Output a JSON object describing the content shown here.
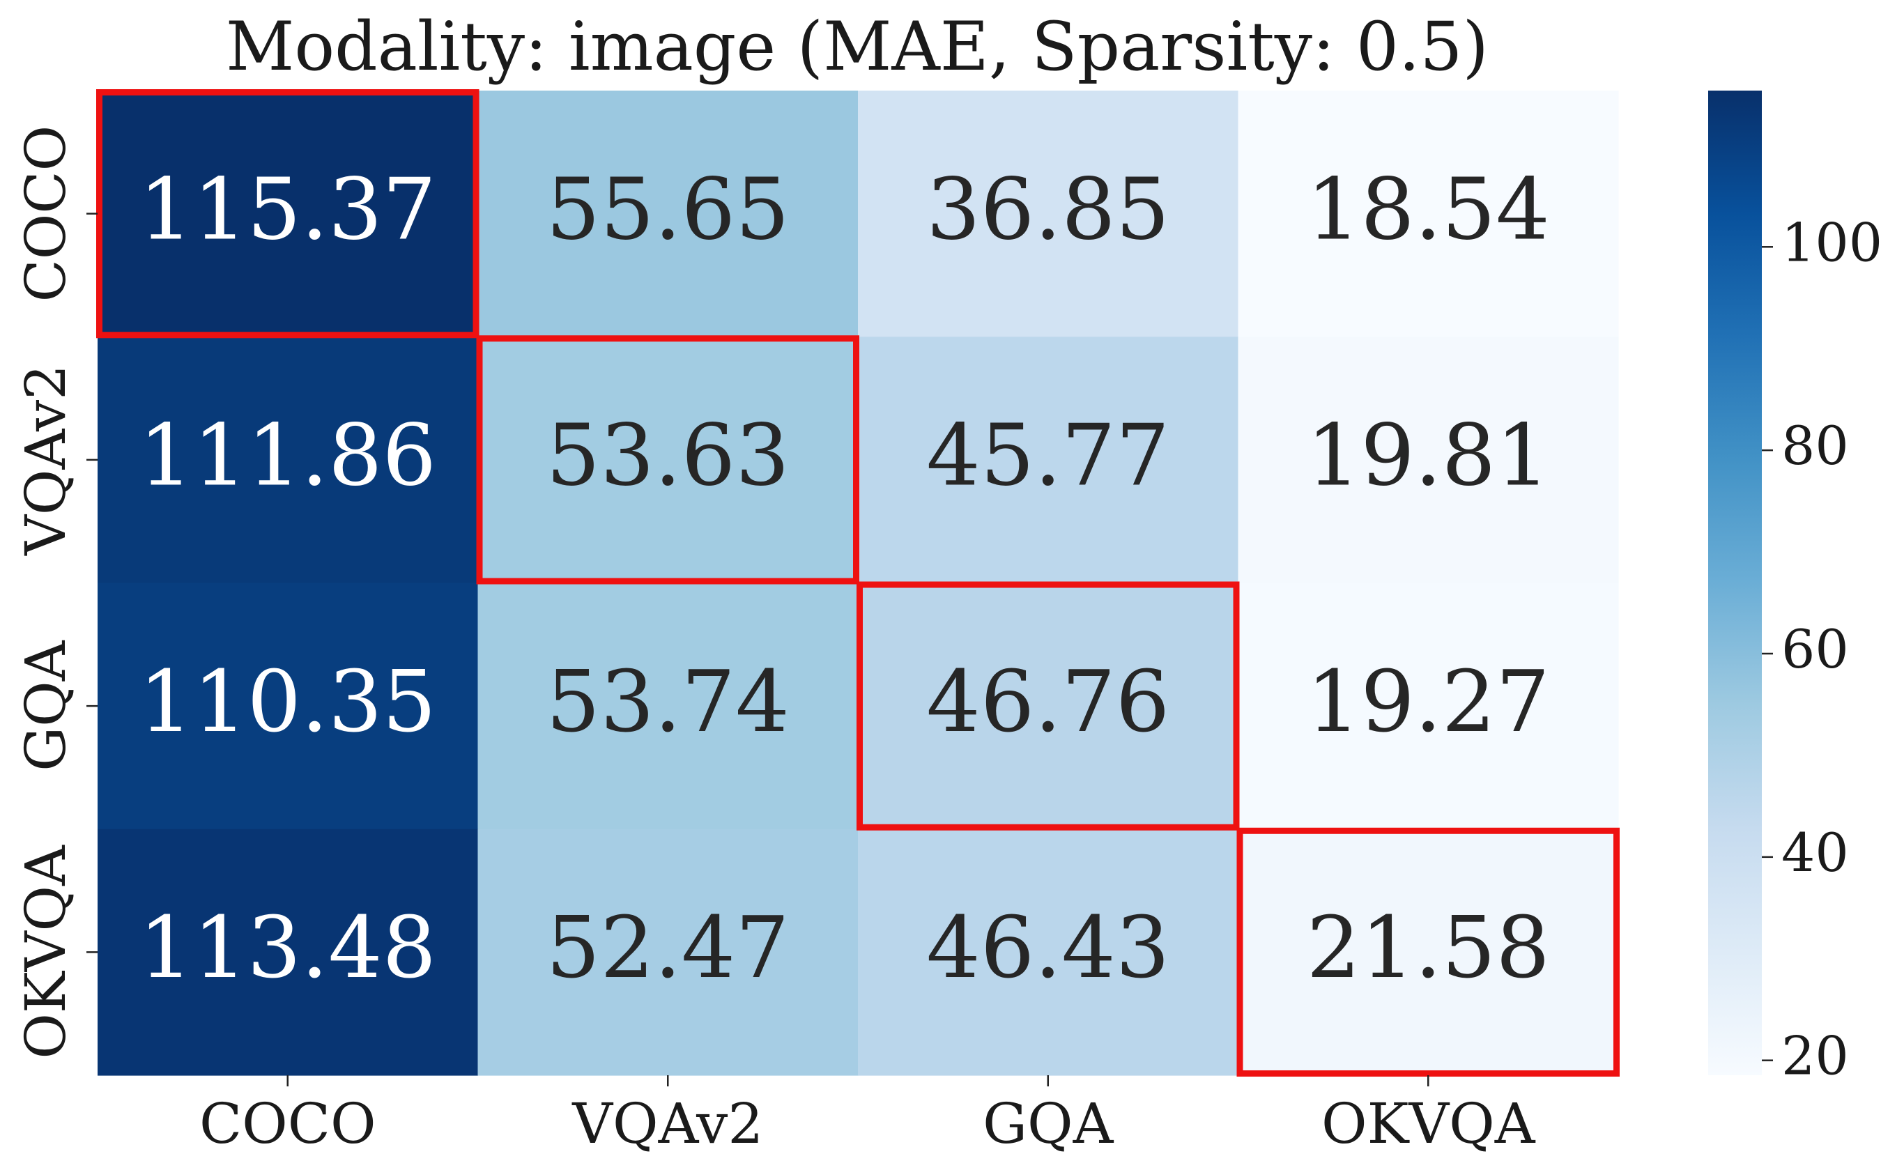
{
  "chart_data": {
    "type": "heatmap",
    "title": "Modality: image (MAE, Sparsity: 0.5)",
    "xlabel": "",
    "ylabel": "",
    "row_labels": [
      "COCO",
      "VQAv2",
      "GQA",
      "OKVQA"
    ],
    "col_labels": [
      "COCO",
      "VQAv2",
      "GQA",
      "OKVQA"
    ],
    "values": [
      [
        115.37,
        55.65,
        36.85,
        18.54
      ],
      [
        111.86,
        53.63,
        45.77,
        19.81
      ],
      [
        110.35,
        53.74,
        46.76,
        19.27
      ],
      [
        113.48,
        52.47,
        46.43,
        21.58
      ]
    ],
    "colormap": "Blues",
    "vmin": 18.54,
    "vmax": 115.37,
    "colorbar_ticks": [
      20,
      40,
      60,
      80,
      100
    ],
    "highlighted_diagonal": true,
    "highlight_color": "#ee1111",
    "light_text_color": "#ffffff",
    "dark_text_color": "#262626"
  }
}
